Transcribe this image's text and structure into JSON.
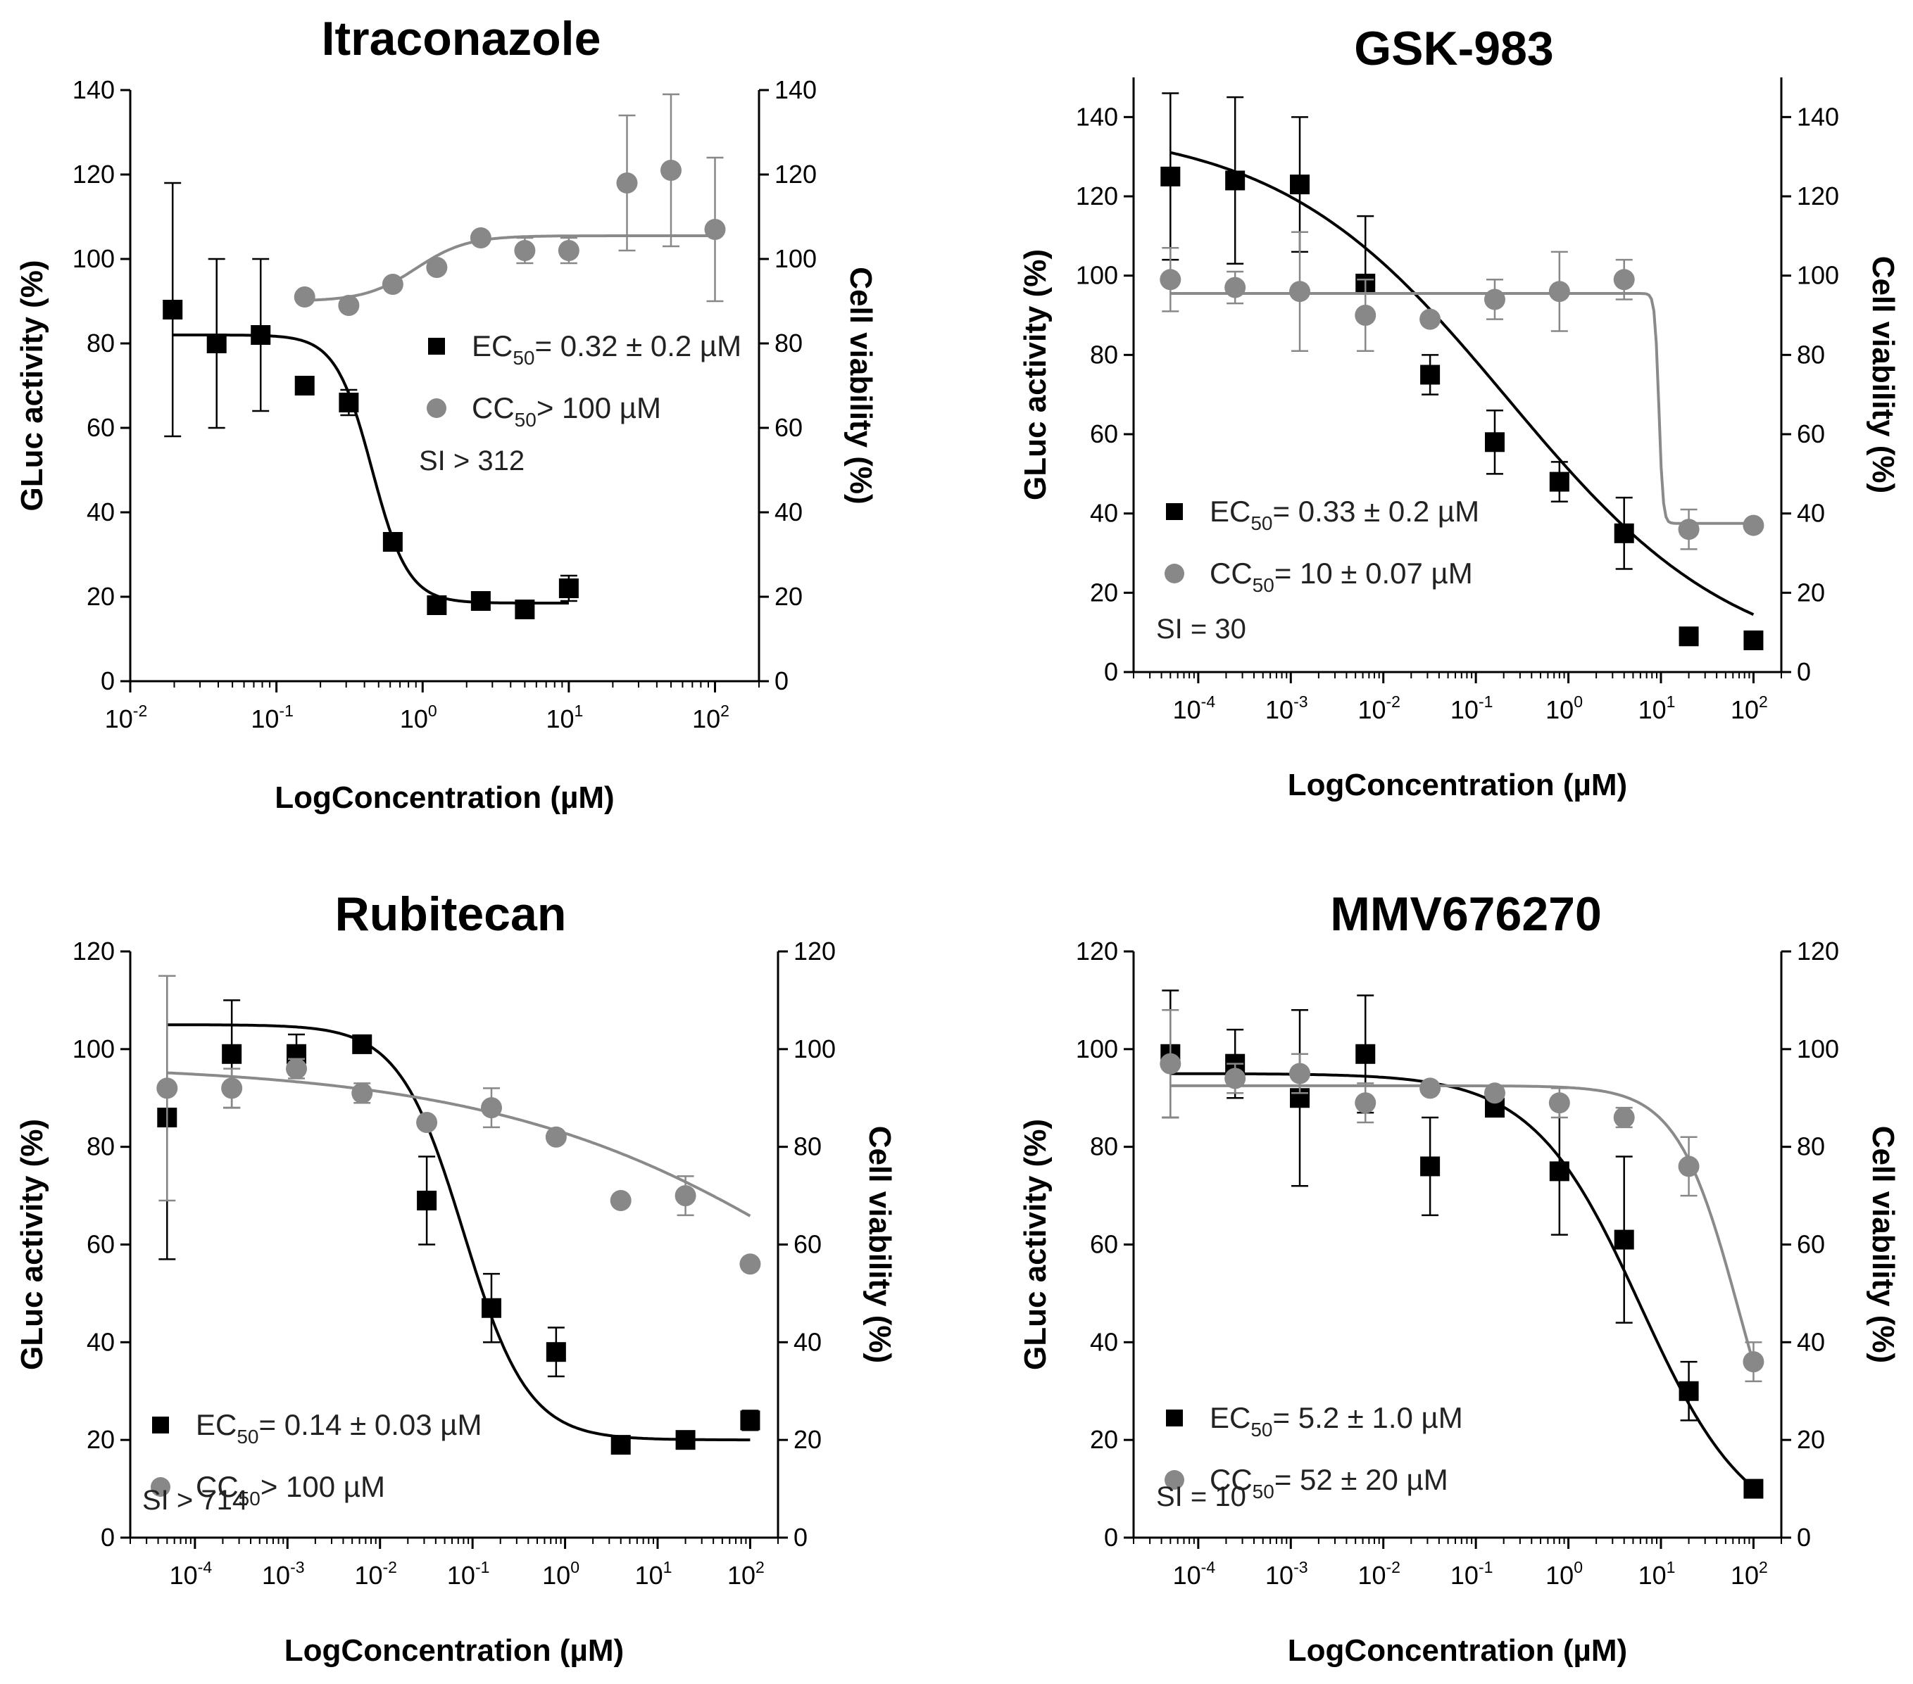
{
  "chart_data": [
    {
      "type": "scatter",
      "title": "Itraconazole",
      "xlabel": "LogConcentration (µM)",
      "ylabel": "GLuc activity (%)",
      "ylabel2": "Cell viability (%)",
      "xscale": "log",
      "xlim": [
        0.01,
        200
      ],
      "ylim": [
        0,
        140
      ],
      "yticks": [
        0,
        20,
        40,
        60,
        80,
        100,
        120,
        140
      ],
      "xticks": [
        {
          "value": 0.01,
          "base": "10",
          "exp": "-2"
        },
        {
          "value": 0.1,
          "base": "10",
          "exp": "-1"
        },
        {
          "value": 1,
          "base": "10",
          "exp": "0"
        },
        {
          "value": 10,
          "base": "10",
          "exp": "1"
        },
        {
          "value": 100,
          "base": "10",
          "exp": "2"
        }
      ],
      "series": [
        {
          "name": "EC50",
          "marker": "square",
          "color": "#000000",
          "points": [
            {
              "x": 0.0195,
              "y": 88,
              "err": 30
            },
            {
              "x": 0.039,
              "y": 80,
              "err": 20
            },
            {
              "x": 0.078,
              "y": 82,
              "err": 18
            },
            {
              "x": 0.156,
              "y": 70,
              "err": 2
            },
            {
              "x": 0.3125,
              "y": 66,
              "err": 3
            },
            {
              "x": 0.625,
              "y": 33,
              "err": 1
            },
            {
              "x": 1.25,
              "y": 18,
              "err": 1
            },
            {
              "x": 2.5,
              "y": 19,
              "err": 2
            },
            {
              "x": 5,
              "y": 17,
              "err": 1
            },
            {
              "x": 10,
              "y": 22,
              "err": 3
            }
          ],
          "curve": {
            "top": 82,
            "bottom": 18.5,
            "ec50": 0.45,
            "hill": 3.5,
            "xmin": 0.0195,
            "xmax": 10
          }
        },
        {
          "name": "CC50",
          "marker": "circle",
          "color": "#888888",
          "points": [
            {
              "x": 0.156,
              "y": 91,
              "err": 0
            },
            {
              "x": 0.3125,
              "y": 89,
              "err": 0
            },
            {
              "x": 0.625,
              "y": 94,
              "err": 0
            },
            {
              "x": 1.25,
              "y": 98,
              "err": 0
            },
            {
              "x": 2.5,
              "y": 105,
              "err": 0
            },
            {
              "x": 5,
              "y": 102,
              "err": 3
            },
            {
              "x": 10,
              "y": 102,
              "err": 3
            },
            {
              "x": 25,
              "y": 118,
              "err": 16
            },
            {
              "x": 50,
              "y": 121,
              "err": 18
            },
            {
              "x": 100,
              "y": 107,
              "err": 17
            }
          ],
          "curve": {
            "top": 90,
            "bottom": 105.5,
            "ec50": 0.9,
            "hill": 2.5,
            "xmin": 0.156,
            "xmax": 100
          }
        }
      ],
      "legend": [
        {
          "marker": "square",
          "prefix": "EC",
          "sub": "50",
          "text": "= 0.32 ± 0.2 µM"
        },
        {
          "marker": "circle",
          "prefix": "CC",
          "sub": "50",
          "text": "> 100 µM"
        }
      ],
      "si": "SI > 312"
    },
    {
      "type": "scatter",
      "title": "GSK-983",
      "xlabel": "LogConcentration (µM)",
      "ylabel": "GLuc activity (%)",
      "ylabel2": "Cell viability (%)",
      "xscale": "log",
      "xlim": [
        2e-05,
        200
      ],
      "ylim": [
        0,
        150
      ],
      "yticks": [
        0,
        20,
        40,
        60,
        80,
        100,
        120,
        140
      ],
      "xticks": [
        {
          "value": 0.0001,
          "base": "10",
          "exp": "-4"
        },
        {
          "value": 0.001,
          "base": "10",
          "exp": "-3"
        },
        {
          "value": 0.01,
          "base": "10",
          "exp": "-2"
        },
        {
          "value": 0.1,
          "base": "10",
          "exp": "-1"
        },
        {
          "value": 1,
          "base": "10",
          "exp": "0"
        },
        {
          "value": 10,
          "base": "10",
          "exp": "1"
        },
        {
          "value": 100,
          "base": "10",
          "exp": "2"
        }
      ],
      "series": [
        {
          "name": "EC50",
          "marker": "square",
          "color": "#000000",
          "points": [
            {
              "x": 5e-05,
              "y": 125,
              "err": 21
            },
            {
              "x": 0.00025,
              "y": 124,
              "err": 21
            },
            {
              "x": 0.00125,
              "y": 123,
              "err": 17
            },
            {
              "x": 0.0064,
              "y": 98,
              "err": 17
            },
            {
              "x": 0.032,
              "y": 75,
              "err": 5
            },
            {
              "x": 0.16,
              "y": 58,
              "err": 8
            },
            {
              "x": 0.8,
              "y": 48,
              "err": 5
            },
            {
              "x": 4,
              "y": 35,
              "err": 9
            },
            {
              "x": 20,
              "y": 9,
              "err": 1
            },
            {
              "x": 100,
              "y": 8,
              "err": 1
            }
          ],
          "curve": {
            "top": 138,
            "bottom": 0,
            "ec50": 0.22,
            "hill": 0.35,
            "xmin": 5e-05,
            "xmax": 100
          }
        },
        {
          "name": "CC50",
          "marker": "circle",
          "color": "#888888",
          "points": [
            {
              "x": 5e-05,
              "y": 99,
              "err": 8
            },
            {
              "x": 0.00025,
              "y": 97,
              "err": 4
            },
            {
              "x": 0.00125,
              "y": 96,
              "err": 15
            },
            {
              "x": 0.0064,
              "y": 90,
              "err": 9
            },
            {
              "x": 0.032,
              "y": 89,
              "err": 1
            },
            {
              "x": 0.16,
              "y": 94,
              "err": 5
            },
            {
              "x": 0.8,
              "y": 96,
              "err": 10
            },
            {
              "x": 4,
              "y": 99,
              "err": 5
            },
            {
              "x": 20,
              "y": 36,
              "err": 5
            },
            {
              "x": 100,
              "y": 37,
              "err": 1
            }
          ],
          "curve": {
            "top": 95.5,
            "bottom": 37.5,
            "ec50": 9.5,
            "hill": 20,
            "xmin": 5e-05,
            "xmax": 100
          }
        }
      ],
      "legend": [
        {
          "marker": "square",
          "prefix": "EC",
          "sub": "50",
          "text": "= 0.33 ± 0.2 µM"
        },
        {
          "marker": "circle",
          "prefix": "CC",
          "sub": "50",
          "text": "= 10 ± 0.07 µM"
        }
      ],
      "si": "SI = 30"
    },
    {
      "type": "scatter",
      "title": "Rubitecan",
      "xlabel": "LogConcentration (µM)",
      "ylabel": "GLuc activity (%)",
      "ylabel2": "Cell viability (%)",
      "xscale": "log",
      "xlim": [
        2e-05,
        200
      ],
      "ylim": [
        0,
        120
      ],
      "yticks": [
        0,
        20,
        40,
        60,
        80,
        100,
        120
      ],
      "xticks": [
        {
          "value": 0.0001,
          "base": "10",
          "exp": "-4"
        },
        {
          "value": 0.001,
          "base": "10",
          "exp": "-3"
        },
        {
          "value": 0.01,
          "base": "10",
          "exp": "-2"
        },
        {
          "value": 0.1,
          "base": "10",
          "exp": "-1"
        },
        {
          "value": 1,
          "base": "10",
          "exp": "0"
        },
        {
          "value": 10,
          "base": "10",
          "exp": "1"
        },
        {
          "value": 100,
          "base": "10",
          "exp": "2"
        }
      ],
      "series": [
        {
          "name": "EC50",
          "marker": "square",
          "color": "#000000",
          "points": [
            {
              "x": 5e-05,
              "y": 86,
              "err": 29
            },
            {
              "x": 0.00025,
              "y": 99,
              "err": 11
            },
            {
              "x": 0.00125,
              "y": 99,
              "err": 4
            },
            {
              "x": 0.0064,
              "y": 101,
              "err": 1
            },
            {
              "x": 0.032,
              "y": 69,
              "err": 9
            },
            {
              "x": 0.16,
              "y": 47,
              "err": 7
            },
            {
              "x": 0.8,
              "y": 38,
              "err": 5
            },
            {
              "x": 4,
              "y": 19,
              "err": 1
            },
            {
              "x": 20,
              "y": 20,
              "err": 1
            },
            {
              "x": 100,
              "y": 24,
              "err": 2
            }
          ],
          "curve": {
            "top": 105,
            "bottom": 20,
            "ec50": 0.08,
            "hill": 1.25,
            "xmin": 5e-05,
            "xmax": 100
          }
        },
        {
          "name": "CC50",
          "marker": "circle",
          "color": "#888888",
          "points": [
            {
              "x": 5e-05,
              "y": 92,
              "err": 23
            },
            {
              "x": 0.00025,
              "y": 92,
              "err": 4
            },
            {
              "x": 0.00125,
              "y": 96,
              "err": 2
            },
            {
              "x": 0.0064,
              "y": 91,
              "err": 2
            },
            {
              "x": 0.032,
              "y": 85,
              "err": 1
            },
            {
              "x": 0.16,
              "y": 88,
              "err": 4
            },
            {
              "x": 0.8,
              "y": 82,
              "err": 1
            },
            {
              "x": 4,
              "y": 69,
              "err": 1
            },
            {
              "x": 20,
              "y": 70,
              "err": 4
            },
            {
              "x": 100,
              "y": 56,
              "err": 1
            }
          ],
          "curve": {
            "top": 97,
            "bottom": 0,
            "ec50": 3000,
            "hill": 0.22,
            "xmin": 5e-05,
            "xmax": 100
          }
        }
      ],
      "legend": [
        {
          "marker": "square",
          "prefix": "EC",
          "sub": "50",
          "text": "= 0.14 ± 0.03 µM"
        },
        {
          "marker": "circle",
          "prefix": "CC",
          "sub": "50",
          "text": "> 100 µM"
        }
      ],
      "si": "SI > 714"
    },
    {
      "type": "scatter",
      "title": "MMV676270",
      "xlabel": "LogConcentration (µM)",
      "ylabel": "GLuc activity (%)",
      "ylabel2": "Cell viability (%)",
      "xscale": "log",
      "xlim": [
        2e-05,
        200
      ],
      "ylim": [
        0,
        120
      ],
      "yticks": [
        0,
        20,
        40,
        60,
        80,
        100,
        120
      ],
      "xticks": [
        {
          "value": 0.0001,
          "base": "10",
          "exp": "-4"
        },
        {
          "value": 0.001,
          "base": "10",
          "exp": "-3"
        },
        {
          "value": 0.01,
          "base": "10",
          "exp": "-2"
        },
        {
          "value": 0.1,
          "base": "10",
          "exp": "-1"
        },
        {
          "value": 1,
          "base": "10",
          "exp": "0"
        },
        {
          "value": 10,
          "base": "10",
          "exp": "1"
        },
        {
          "value": 100,
          "base": "10",
          "exp": "2"
        }
      ],
      "series": [
        {
          "name": "EC50",
          "marker": "square",
          "color": "#000000",
          "points": [
            {
              "x": 5e-05,
              "y": 99,
              "err": 13
            },
            {
              "x": 0.00025,
              "y": 97,
              "err": 7
            },
            {
              "x": 0.00125,
              "y": 90,
              "err": 18
            },
            {
              "x": 0.0064,
              "y": 99,
              "err": 12
            },
            {
              "x": 0.032,
              "y": 76,
              "err": 10
            },
            {
              "x": 0.16,
              "y": 88,
              "err": 1
            },
            {
              "x": 0.8,
              "y": 75,
              "err": 13
            },
            {
              "x": 4,
              "y": 61,
              "err": 17
            },
            {
              "x": 20,
              "y": 30,
              "err": 6
            },
            {
              "x": 100,
              "y": 10,
              "err": 1
            }
          ],
          "curve": {
            "top": 95,
            "bottom": 0,
            "ec50": 6,
            "hill": 0.75,
            "xmin": 5e-05,
            "xmax": 100
          }
        },
        {
          "name": "CC50",
          "marker": "circle",
          "color": "#888888",
          "points": [
            {
              "x": 5e-05,
              "y": 97,
              "err": 11
            },
            {
              "x": 0.00025,
              "y": 94,
              "err": 3
            },
            {
              "x": 0.00125,
              "y": 95,
              "err": 4
            },
            {
              "x": 0.0064,
              "y": 89,
              "err": 4
            },
            {
              "x": 0.032,
              "y": 92,
              "err": 1
            },
            {
              "x": 0.16,
              "y": 91,
              "err": 1
            },
            {
              "x": 0.8,
              "y": 89,
              "err": 3
            },
            {
              "x": 4,
              "y": 86,
              "err": 2
            },
            {
              "x": 20,
              "y": 76,
              "err": 6
            },
            {
              "x": 100,
              "y": 36,
              "err": 4
            }
          ],
          "curve": {
            "top": 92.5,
            "bottom": 0,
            "ec50": 70,
            "hill": 1.3,
            "xmin": 5e-05,
            "xmax": 100
          }
        }
      ],
      "legend": [
        {
          "marker": "square",
          "prefix": "EC",
          "sub": "50",
          "text": "= 5.2 ± 1.0 µM"
        },
        {
          "marker": "circle",
          "prefix": "CC",
          "sub": "50",
          "text": "= 52 ± 20 µM"
        }
      ],
      "si": "SI = 10"
    }
  ]
}
